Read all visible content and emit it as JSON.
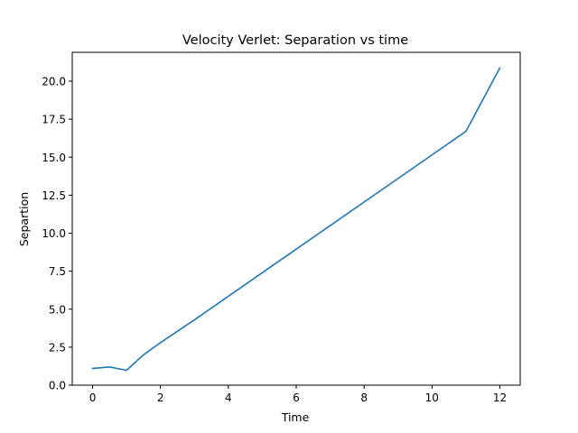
{
  "chart_data": {
    "type": "line",
    "title": "Velocity Verlet: Separation vs time",
    "xlabel": "Time",
    "ylabel": "Separtion",
    "xlim": [
      -0.6,
      12.6
    ],
    "ylim": [
      0,
      21.9
    ],
    "xticks": [
      0,
      2,
      4,
      6,
      8,
      10,
      12
    ],
    "xtick_labels": [
      "0",
      "2",
      "4",
      "6",
      "8",
      "10",
      "12"
    ],
    "yticks": [
      0,
      2.5,
      5,
      7.5,
      10,
      12.5,
      15,
      17.5,
      20
    ],
    "ytick_labels": [
      "0.0",
      "2.5",
      "5.0",
      "7.5",
      "10.0",
      "12.5",
      "15.0",
      "17.5",
      "20.0"
    ],
    "grid": false,
    "series": [
      {
        "color": "#1f77b4",
        "x": [
          0,
          0.5,
          1.0,
          1.5,
          2.0,
          3.0,
          4.0,
          5.0,
          6.0,
          7.0,
          8.0,
          9.0,
          10.0,
          11.0,
          12.0
        ],
        "y": [
          1.1,
          1.2,
          0.98,
          2.0,
          2.8,
          4.3,
          5.85,
          7.4,
          8.95,
          10.5,
          12.05,
          13.6,
          15.15,
          16.7,
          20.87
        ]
      }
    ]
  }
}
